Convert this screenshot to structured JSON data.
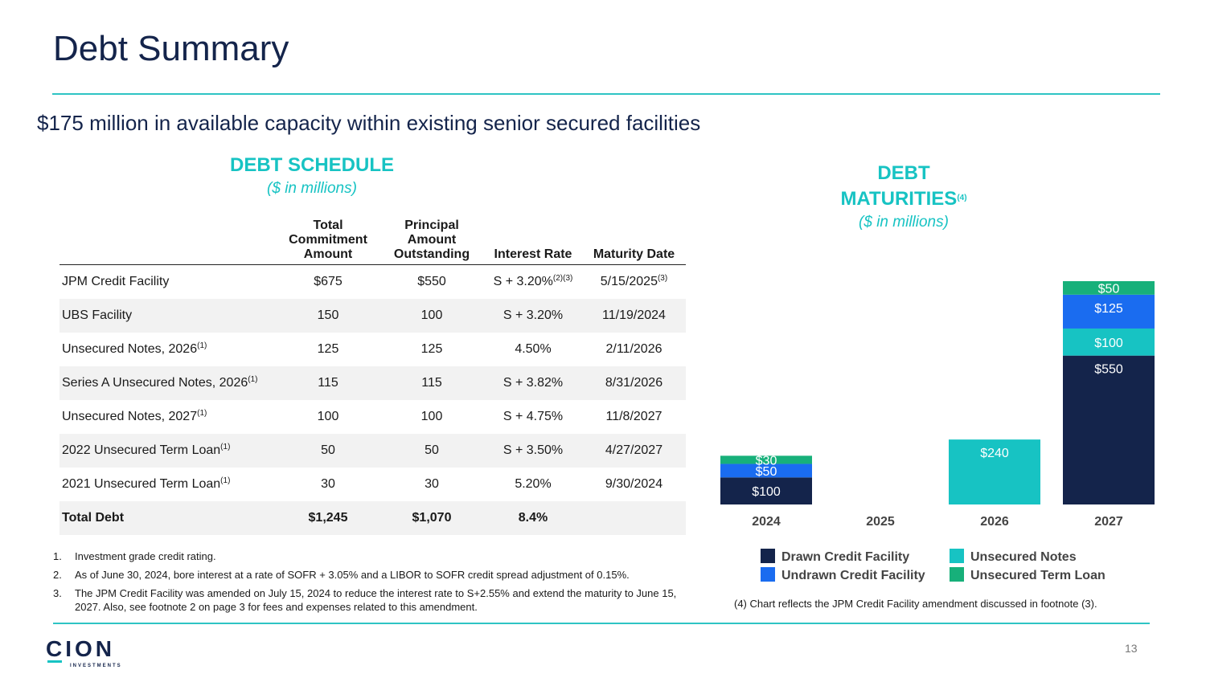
{
  "slide": {
    "title": "Debt Summary",
    "subtitle": "$175 million in available capacity within existing senior secured facilities",
    "page_number": "13"
  },
  "schedule": {
    "heading": "DEBT SCHEDULE",
    "units": "($ in millions)",
    "headers": {
      "commitment": [
        "Total",
        "Commitment",
        "Amount"
      ],
      "principal": [
        "Principal",
        "Amount",
        "Outstanding"
      ],
      "rate": "Interest Rate",
      "maturity": "Maturity Date"
    },
    "rows": [
      {
        "name": "JPM Credit Facility",
        "name_sup": "",
        "commitment": "$675",
        "principal": "$550",
        "rate": "S + 3.20%",
        "rate_sup": "(2)(3)",
        "maturity": "5/15/2025",
        "maturity_sup": "(3)"
      },
      {
        "name": "UBS Facility",
        "name_sup": "",
        "commitment": "150",
        "principal": "100",
        "rate": "S + 3.20%",
        "rate_sup": "",
        "maturity": "11/19/2024",
        "maturity_sup": ""
      },
      {
        "name": "Unsecured Notes, 2026",
        "name_sup": "(1)",
        "commitment": "125",
        "principal": "125",
        "rate": "4.50%",
        "rate_sup": "",
        "maturity": "2/11/2026",
        "maturity_sup": ""
      },
      {
        "name": "Series A Unsecured Notes, 2026",
        "name_sup": "(1)",
        "commitment": "115",
        "principal": "115",
        "rate": "S + 3.82%",
        "rate_sup": "",
        "maturity": "8/31/2026",
        "maturity_sup": ""
      },
      {
        "name": "Unsecured Notes, 2027",
        "name_sup": "(1)",
        "commitment": "100",
        "principal": "100",
        "rate": "S + 4.75%",
        "rate_sup": "",
        "maturity": "11/8/2027",
        "maturity_sup": ""
      },
      {
        "name": "2022 Unsecured Term Loan",
        "name_sup": "(1)",
        "commitment": "50",
        "principal": "50",
        "rate": "S + 3.50%",
        "rate_sup": "",
        "maturity": "4/27/2027",
        "maturity_sup": ""
      },
      {
        "name": "2021 Unsecured Term Loan",
        "name_sup": "(1)",
        "commitment": "30",
        "principal": "30",
        "rate": "5.20%",
        "rate_sup": "",
        "maturity": "9/30/2024",
        "maturity_sup": ""
      }
    ],
    "total": {
      "name": "Total Debt",
      "commitment": "$1,245",
      "principal": "$1,070",
      "rate": "8.4%",
      "maturity": ""
    },
    "footnotes": [
      {
        "num": "1.",
        "text": "Investment grade credit rating."
      },
      {
        "num": "2.",
        "text": "As of June 30, 2024, bore interest at a rate of SOFR + 3.05% and a LIBOR to SOFR credit spread adjustment of 0.15%."
      },
      {
        "num": "3.",
        "text": "The JPM Credit Facility was amended on July 15, 2024 to reduce the interest rate to S+2.55% and extend the maturity to June 15, 2027. Also, see footnote 2 on page 3 for fees and expenses related to this amendment."
      }
    ]
  },
  "maturities": {
    "heading_line1": "DEBT",
    "heading_line2": "MATURITIES",
    "heading_sup": "(4)",
    "units": "($ in millions)",
    "note": "(4)  Chart reflects the JPM Credit Facility amendment discussed in footnote (3)."
  },
  "chart_data": {
    "type": "bar",
    "stacked": true,
    "title": "DEBT MATURITIES",
    "units": "$ in millions",
    "categories": [
      "2024",
      "2025",
      "2026",
      "2027"
    ],
    "series": [
      {
        "name": "Drawn Credit Facility",
        "color": "#14244b",
        "values": [
          100,
          0,
          0,
          550
        ]
      },
      {
        "name": "Unsecured Notes",
        "color": "#17c3c3",
        "values": [
          0,
          0,
          240,
          100
        ]
      },
      {
        "name": "Undrawn Credit Facility",
        "color": "#1a6cf0",
        "values": [
          50,
          0,
          0,
          125
        ]
      },
      {
        "name": "Unsecured Term Loan",
        "color": "#17b07a",
        "values": [
          30,
          0,
          0,
          50
        ]
      }
    ],
    "data_labels_prefix": "$",
    "legend": [
      {
        "name": "Drawn Credit Facility",
        "color": "#14244b"
      },
      {
        "name": "Unsecured Notes",
        "color": "#17c3c3"
      },
      {
        "name": "Undrawn Credit Facility",
        "color": "#1a6cf0"
      },
      {
        "name": "Unsecured Term Loan",
        "color": "#17b07a"
      }
    ],
    "ylim": [
      0,
      825
    ],
    "grid": false
  },
  "brand": {
    "logo_letters": "CION",
    "logo_tagline": "INVESTMENTS",
    "navy": "#14244b",
    "teal": "#17c3c3"
  }
}
